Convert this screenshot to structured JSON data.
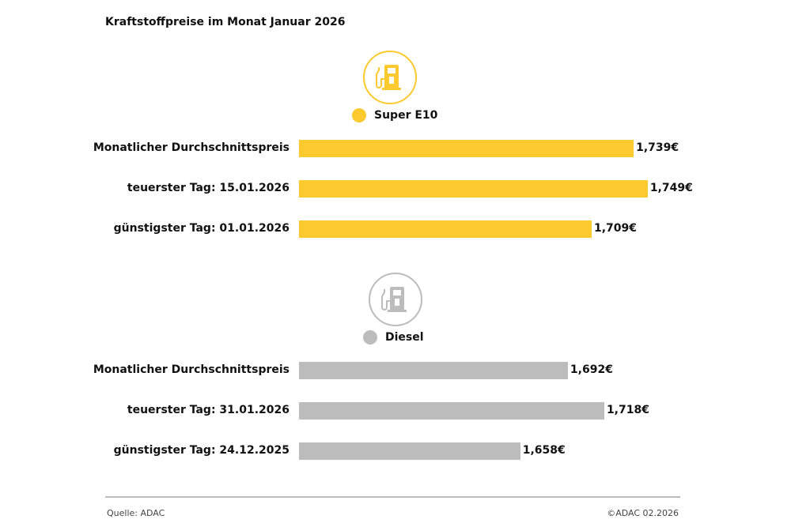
{
  "chart_data": {
    "type": "bar",
    "orientation": "horizontal",
    "title": "Kraftstoffpreise im Monat Januar 2026",
    "xlim": [
      1.5,
      1.77
    ],
    "grid": false,
    "groups": [
      {
        "name": "Super E10",
        "color": "#fcca2e",
        "icon": "fuel-pump-icon",
        "categories": [
          "Monatlicher Durchschnittspreis",
          "teuerster Tag: 15.01.2026",
          "günstigster Tag: 01.01.2026"
        ],
        "values": [
          1.739,
          1.749,
          1.709
        ],
        "labels": [
          "1,739€",
          "1,749€",
          "1,709€"
        ]
      },
      {
        "name": "Diesel",
        "color": "#bcbcbc",
        "icon": "fuel-pump-icon",
        "categories": [
          "Monatlicher Durchschnittspreis",
          "teuerster Tag: 31.01.2026",
          "günstigster Tag: 24.12.2025"
        ],
        "values": [
          1.692,
          1.718,
          1.658
        ],
        "labels": [
          "1,692€",
          "1,718€",
          "1,658€"
        ]
      }
    ]
  },
  "footer": {
    "source": "Quelle: ADAC",
    "copyright": "©ADAC 02.2026"
  }
}
